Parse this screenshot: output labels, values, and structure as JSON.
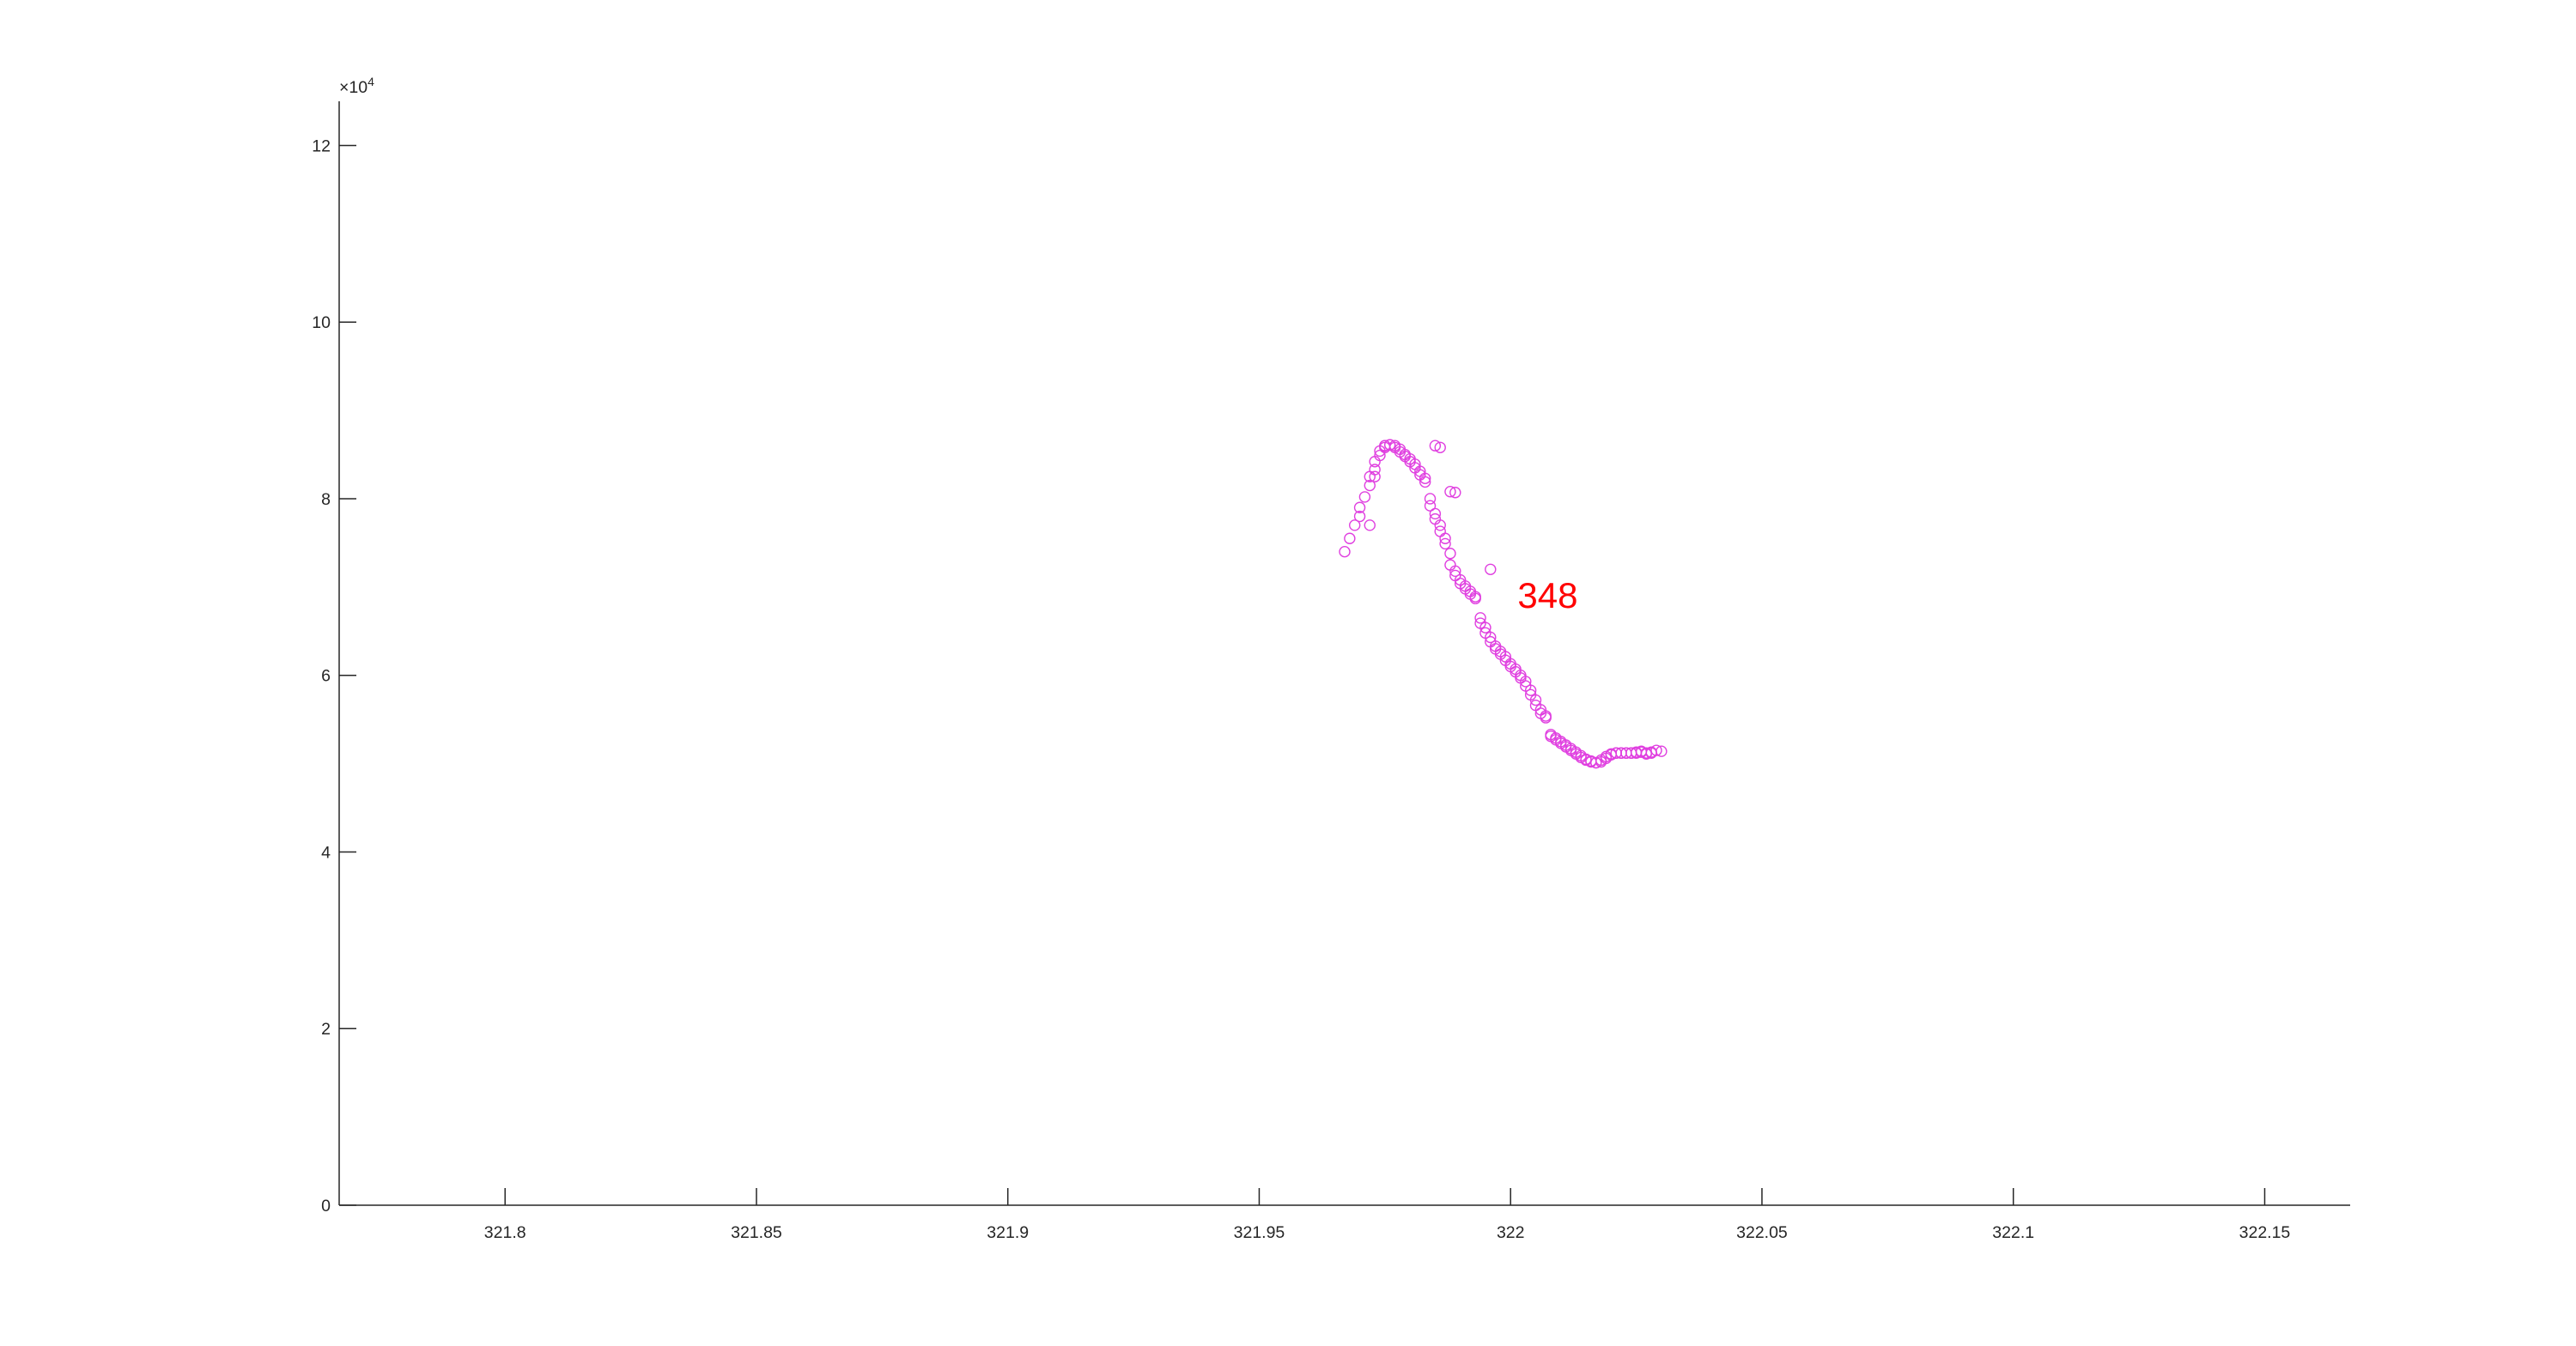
{
  "chart_data": {
    "type": "scatter",
    "title": "",
    "xlabel": "",
    "ylabel": "",
    "xlim": [
      321.767,
      322.167
    ],
    "ylim": [
      0,
      125000
    ],
    "x_ticks": [
      321.8,
      321.85,
      321.9,
      321.95,
      322,
      322.05,
      322.1,
      322.15
    ],
    "x_tick_labels": [
      "321.8",
      "321.85",
      "321.9",
      "321.95",
      "322",
      "322.05",
      "322.1",
      "322.15"
    ],
    "y_ticks": [
      0,
      20000,
      40000,
      60000,
      80000,
      100000,
      120000
    ],
    "y_tick_labels": [
      "0",
      "2",
      "4",
      "6",
      "8",
      "10",
      "12"
    ],
    "y_exponent": {
      "base": "×10",
      "power": "4"
    },
    "grid": false,
    "marker": "circle-open",
    "marker_color": "#e040e0",
    "annotation": {
      "text": "348",
      "x": 321.999,
      "y": 69000,
      "color": "#ff0000"
    },
    "series": [
      {
        "x": [
          321.967,
          321.968,
          321.969,
          321.97,
          321.97,
          321.971,
          321.972,
          321.972,
          321.973,
          321.973,
          321.974,
          321.974,
          321.975,
          321.975,
          321.976,
          321.976,
          321.977,
          321.977,
          321.978,
          321.978,
          321.979,
          321.979,
          321.98,
          321.98,
          321.981,
          321.981,
          321.982,
          321.982,
          321.983,
          321.983,
          321.984,
          321.984,
          321.985,
          321.985,
          321.986,
          321.986,
          321.987,
          321.987,
          321.988,
          321.988,
          321.989,
          321.989,
          321.99,
          321.99,
          321.991,
          321.991,
          321.992,
          321.992,
          321.993,
          321.993,
          321.994,
          321.994,
          321.995,
          321.995,
          321.996,
          321.996,
          321.997,
          321.997,
          321.998,
          321.998,
          321.999,
          321.999,
          322.0,
          322.0,
          322.001,
          322.001,
          322.002,
          322.002,
          322.003,
          322.003,
          322.004,
          322.004,
          322.005,
          322.005,
          322.006,
          322.006,
          322.007,
          322.007,
          322.008,
          322.008,
          322.009,
          322.009,
          322.01,
          322.01,
          322.011,
          322.011,
          322.012,
          322.012,
          322.013,
          322.013,
          322.014,
          322.014,
          322.015,
          322.015,
          322.016,
          322.016,
          322.017,
          322.017,
          322.018,
          322.018,
          322.019,
          322.019,
          322.02,
          322.02,
          322.021,
          322.021,
          322.022,
          322.022,
          322.023,
          322.023,
          322.024,
          322.024,
          322.025,
          322.025,
          322.026,
          322.026,
          322.027,
          322.027,
          322.028,
          322.028,
          322.029,
          322.03,
          321.972,
          321.973,
          321.975,
          321.985,
          321.986,
          321.988,
          321.989,
          321.996
        ],
        "y": [
          74000,
          75500,
          77000,
          78000,
          79000,
          80200,
          81500,
          82500,
          83300,
          84200,
          84900,
          85400,
          85800,
          86000,
          86100,
          86100,
          86000,
          85800,
          85600,
          85300,
          85000,
          84800,
          84500,
          84200,
          83900,
          83500,
          83100,
          82700,
          82300,
          81900,
          80000,
          79200,
          78300,
          77700,
          77000,
          76300,
          75500,
          74900,
          73800,
          72500,
          71800,
          71300,
          70800,
          70400,
          70100,
          69800,
          69500,
          69200,
          68900,
          68700,
          66500,
          65900,
          65400,
          64800,
          64300,
          63800,
          63300,
          63000,
          62700,
          62400,
          62100,
          61700,
          61300,
          61000,
          60700,
          60400,
          60000,
          59700,
          59300,
          58800,
          58300,
          57800,
          57200,
          56600,
          56100,
          55700,
          55400,
          55200,
          53300,
          53100,
          52900,
          52700,
          52500,
          52300,
          52100,
          51900,
          51700,
          51500,
          51300,
          51100,
          50900,
          50700,
          50500,
          50400,
          50300,
          50200,
          50100,
          50100,
          50200,
          50400,
          50600,
          50800,
          51000,
          51100,
          51200,
          51200,
          51200,
          51200,
          51200,
          51200,
          51200,
          51200,
          51200,
          51300,
          51400,
          51300,
          51200,
          51100,
          51200,
          51300,
          51500,
          51400,
          77000,
          82500,
          86000,
          86000,
          85800,
          80800,
          80700,
          72000
        ]
      }
    ]
  }
}
